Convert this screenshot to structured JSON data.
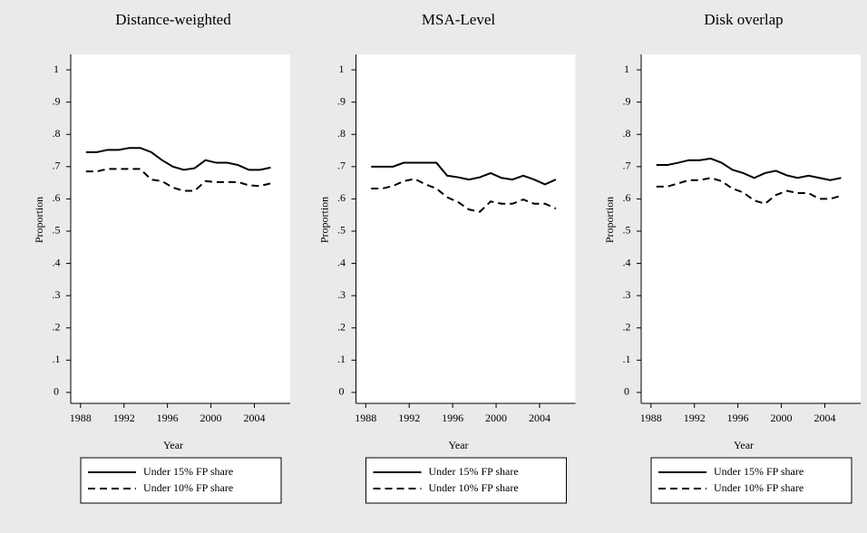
{
  "chart_data": [
    {
      "type": "line",
      "title": "Distance-weighted",
      "x_label": "Year",
      "y_label": "Proportion",
      "x": [
        1988.5,
        1989.5,
        1990.5,
        1991.5,
        1992.5,
        1993.5,
        1994.5,
        1995.5,
        1996.5,
        1997.5,
        1998.5,
        1999.5,
        2000.5,
        2001.5,
        2002.5,
        2003.5,
        2004.5,
        2005.5
      ],
      "series": [
        {
          "name": "Under 15% FP share",
          "color": "#000000",
          "dash": "solid",
          "values": [
            0.745,
            0.745,
            0.752,
            0.752,
            0.758,
            0.758,
            0.745,
            0.72,
            0.7,
            0.69,
            0.695,
            0.72,
            0.712,
            0.712,
            0.705,
            0.69,
            0.69,
            0.697
          ]
        },
        {
          "name": "Under 10% FP share",
          "color": "#000000",
          "dash": "dashed",
          "values": [
            0.685,
            0.685,
            0.693,
            0.693,
            0.693,
            0.693,
            0.66,
            0.655,
            0.635,
            0.625,
            0.625,
            0.655,
            0.652,
            0.652,
            0.652,
            0.642,
            0.64,
            0.648
          ]
        }
      ],
      "xlim": [
        1987.1,
        2007.3
      ],
      "ylim": [
        -0.034,
        1.048
      ],
      "xticks": [
        1988,
        1992,
        1996,
        2000,
        2004
      ],
      "yticks": [
        0,
        {
          "value": 0.1,
          "label": ".1"
        },
        {
          "value": 0.2,
          "label": ".2"
        },
        {
          "value": 0.3,
          "label": ".3"
        },
        {
          "value": 0.4,
          "label": ".4"
        },
        {
          "value": 0.5,
          "label": ".5"
        },
        {
          "value": 0.6,
          "label": ".6"
        },
        {
          "value": 0.7,
          "label": ".7"
        },
        {
          "value": 0.8,
          "label": ".8"
        },
        {
          "value": 0.9,
          "label": ".9"
        },
        1
      ]
    },
    {
      "type": "line",
      "title": "MSA-Level",
      "x_label": "Year",
      "y_label": "Proportion",
      "x": [
        1988.5,
        1989.5,
        1990.5,
        1991.5,
        1992.5,
        1993.5,
        1994.5,
        1995.5,
        1996.5,
        1997.5,
        1998.5,
        1999.5,
        2000.5,
        2001.5,
        2002.5,
        2003.5,
        2004.5,
        2005.5
      ],
      "series": [
        {
          "name": "Under 15% FP share",
          "color": "#000000",
          "dash": "solid",
          "values": [
            0.7,
            0.7,
            0.7,
            0.712,
            0.712,
            0.712,
            0.712,
            0.672,
            0.667,
            0.66,
            0.667,
            0.68,
            0.665,
            0.66,
            0.672,
            0.66,
            0.645,
            0.66
          ]
        },
        {
          "name": "Under 10% FP share",
          "color": "#000000",
          "dash": "dashed",
          "values": [
            0.632,
            0.632,
            0.64,
            0.655,
            0.662,
            0.645,
            0.632,
            0.605,
            0.59,
            0.567,
            0.56,
            0.592,
            0.585,
            0.585,
            0.598,
            0.585,
            0.585,
            0.57
          ]
        }
      ],
      "xlim": [
        1987.1,
        2007.3
      ],
      "ylim": [
        -0.034,
        1.048
      ],
      "xticks": [
        1988,
        1992,
        1996,
        2000,
        2004
      ],
      "yticks": [
        0,
        {
          "value": 0.1,
          "label": ".1"
        },
        {
          "value": 0.2,
          "label": ".2"
        },
        {
          "value": 0.3,
          "label": ".3"
        },
        {
          "value": 0.4,
          "label": ".4"
        },
        {
          "value": 0.5,
          "label": ".5"
        },
        {
          "value": 0.6,
          "label": ".6"
        },
        {
          "value": 0.7,
          "label": ".7"
        },
        {
          "value": 0.8,
          "label": ".8"
        },
        {
          "value": 0.9,
          "label": ".9"
        },
        1
      ]
    },
    {
      "type": "line",
      "title": "Disk overlap",
      "x_label": "Year",
      "y_label": "Proportion",
      "x": [
        1988.5,
        1989.5,
        1990.5,
        1991.5,
        1992.5,
        1993.5,
        1994.5,
        1995.5,
        1996.5,
        1997.5,
        1998.5,
        1999.5,
        2000.5,
        2001.5,
        2002.5,
        2003.5,
        2004.5,
        2005.5
      ],
      "series": [
        {
          "name": "Under 15% FP share",
          "color": "#000000",
          "dash": "solid",
          "values": [
            0.705,
            0.705,
            0.712,
            0.72,
            0.72,
            0.725,
            0.712,
            0.69,
            0.68,
            0.665,
            0.68,
            0.687,
            0.673,
            0.665,
            0.672,
            0.665,
            0.658,
            0.665
          ]
        },
        {
          "name": "Under 10% FP share",
          "color": "#000000",
          "dash": "dashed",
          "values": [
            0.638,
            0.638,
            0.648,
            0.658,
            0.658,
            0.665,
            0.655,
            0.632,
            0.62,
            0.595,
            0.585,
            0.612,
            0.625,
            0.618,
            0.618,
            0.6,
            0.6,
            0.61
          ]
        }
      ],
      "xlim": [
        1987.1,
        2007.3
      ],
      "ylim": [
        -0.034,
        1.048
      ],
      "xticks": [
        1988,
        1992,
        1996,
        2000,
        2004
      ],
      "yticks": [
        0,
        {
          "value": 0.1,
          "label": ".1"
        },
        {
          "value": 0.2,
          "label": ".2"
        },
        {
          "value": 0.3,
          "label": ".3"
        },
        {
          "value": 0.4,
          "label": ".4"
        },
        {
          "value": 0.5,
          "label": ".5"
        },
        {
          "value": 0.6,
          "label": ".6"
        },
        {
          "value": 0.7,
          "label": ".7"
        },
        {
          "value": 0.8,
          "label": ".8"
        },
        {
          "value": 0.9,
          "label": ".9"
        },
        1
      ]
    }
  ]
}
